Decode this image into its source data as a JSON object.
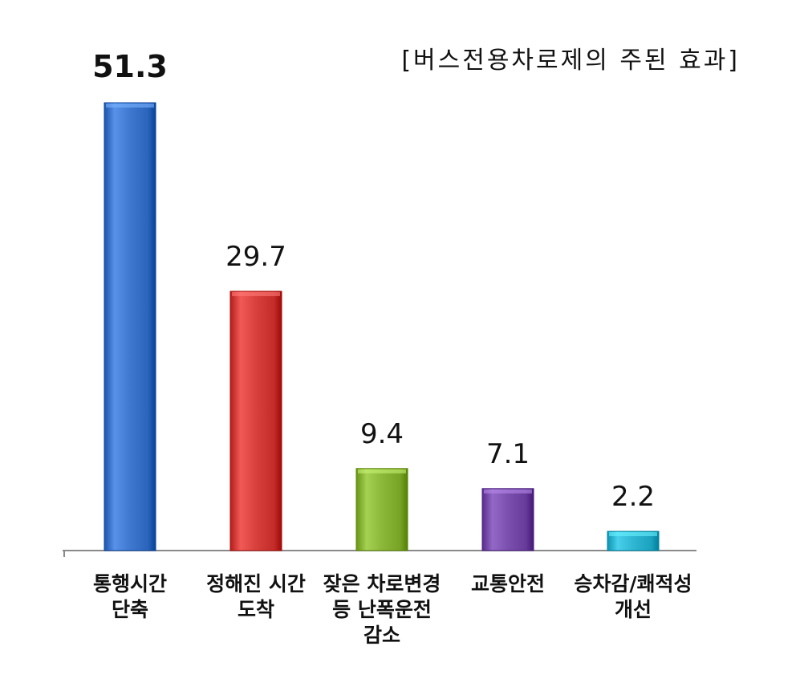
{
  "chart_data": {
    "type": "bar",
    "title": "[버스전용차로제의 주된 효과]",
    "categories": [
      "통행시간\n단축",
      "정해진 시간\n도착",
      "잦은 차로변경\n등 난폭운전\n감소",
      "교통안전",
      "승차감/쾌적성\n개선"
    ],
    "values": [
      51.3,
      29.7,
      9.4,
      7.1,
      2.2
    ],
    "value_labels": [
      "51.3",
      "29.7",
      "9.4",
      "7.1",
      "2.2"
    ],
    "colors": [
      "#3f78cf",
      "#d8403d",
      "#8cb83a",
      "#7b4fae",
      "#2fb6d3"
    ],
    "xlabel": "",
    "ylabel": "",
    "ylim": [
      0,
      51.3
    ],
    "grid": false,
    "legend": "none"
  }
}
